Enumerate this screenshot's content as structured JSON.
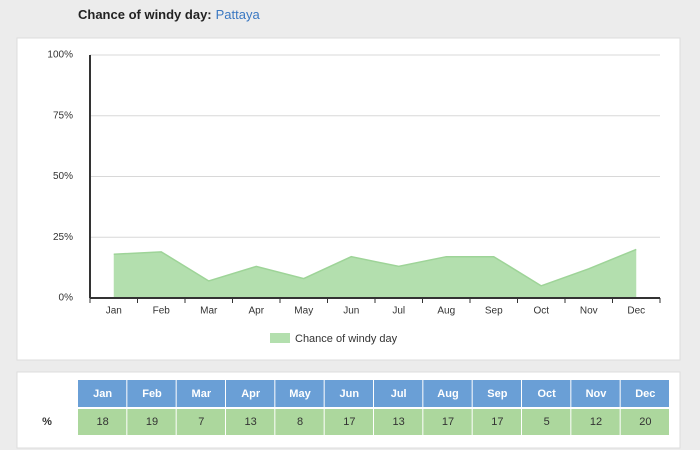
{
  "header": {
    "title": "Chance of windy day:",
    "location": "Pattaya"
  },
  "chart_data": {
    "type": "area",
    "categories": [
      "Jan",
      "Feb",
      "Mar",
      "Apr",
      "May",
      "Jun",
      "Jul",
      "Aug",
      "Sep",
      "Oct",
      "Nov",
      "Dec"
    ],
    "series": [
      {
        "name": "Chance of windy day",
        "color": "#b3dfae",
        "values": [
          18,
          19,
          7,
          13,
          8,
          17,
          13,
          17,
          17,
          5,
          12,
          20
        ]
      }
    ],
    "ylim": [
      0,
      100
    ],
    "yticks": [
      {
        "value": 0,
        "label": "0%"
      },
      {
        "value": 25,
        "label": "25%"
      },
      {
        "value": 50,
        "label": "50%"
      },
      {
        "value": 75,
        "label": "75%"
      },
      {
        "value": 100,
        "label": "100%"
      }
    ],
    "grid": true,
    "legend": "bottom"
  },
  "table": {
    "row_label": "%"
  }
}
